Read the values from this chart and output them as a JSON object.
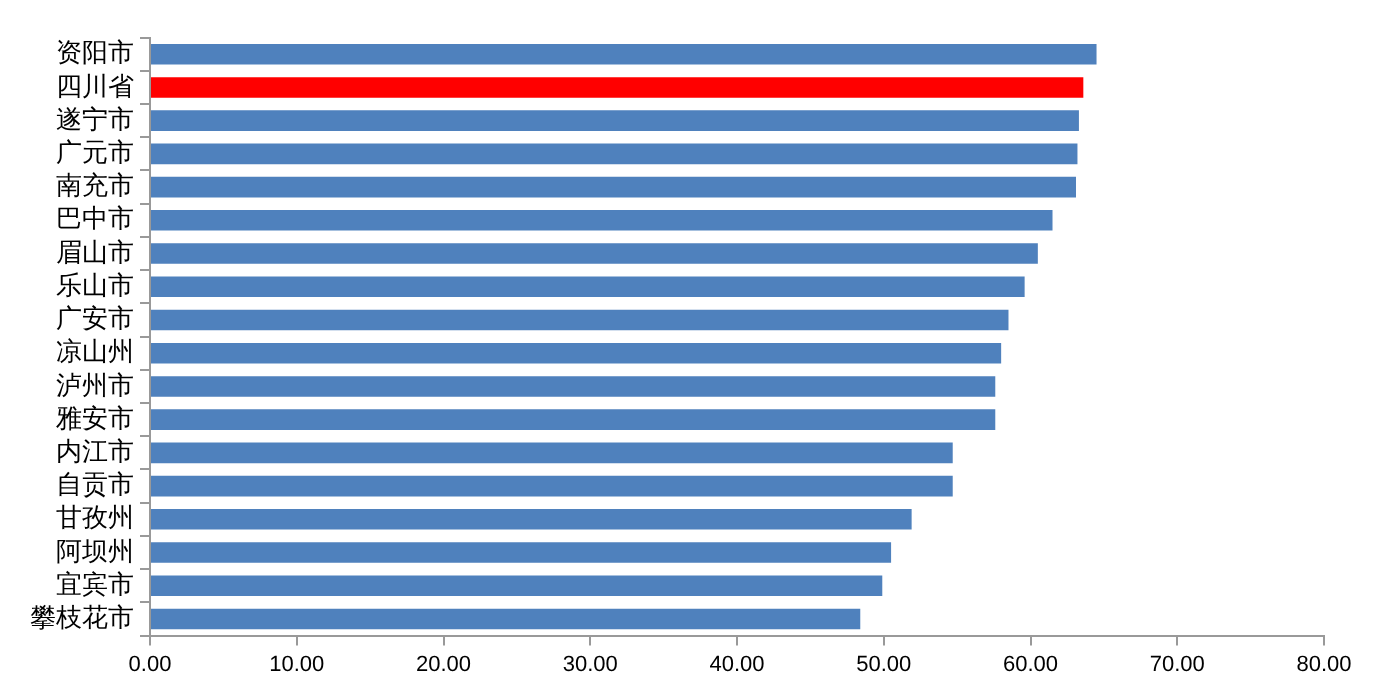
{
  "chart_data": {
    "type": "bar",
    "orientation": "horizontal",
    "categories": [
      "资阳市",
      "四川省",
      "遂宁市",
      "广元市",
      "南充市",
      "巴中市",
      "眉山市",
      "乐山市",
      "广安市",
      "凉山州",
      "泸州市",
      "雅安市",
      "内江市",
      "自贡市",
      "甘孜州",
      "阿坝州",
      "宜宾市",
      "攀枝花市"
    ],
    "values": [
      64.5,
      63.6,
      63.3,
      63.2,
      63.1,
      61.5,
      60.5,
      59.6,
      58.5,
      58.0,
      57.6,
      57.6,
      54.7,
      54.7,
      51.9,
      50.5,
      49.9,
      48.4
    ],
    "colors": [
      "#4f81bd",
      "#ff0000",
      "#4f81bd",
      "#4f81bd",
      "#4f81bd",
      "#4f81bd",
      "#4f81bd",
      "#4f81bd",
      "#4f81bd",
      "#4f81bd",
      "#4f81bd",
      "#4f81bd",
      "#4f81bd",
      "#4f81bd",
      "#4f81bd",
      "#4f81bd",
      "#4f81bd",
      "#4f81bd"
    ],
    "xlim": [
      0,
      80
    ],
    "xticks": [
      {
        "value": 0,
        "label": "0.00"
      },
      {
        "value": 10,
        "label": "10.00"
      },
      {
        "value": 20,
        "label": "20.00"
      },
      {
        "value": 30,
        "label": "30.00"
      },
      {
        "value": 40,
        "label": "40.00"
      },
      {
        "value": 50,
        "label": "50.00"
      },
      {
        "value": 60,
        "label": "60.00"
      },
      {
        "value": 70,
        "label": "70.00"
      },
      {
        "value": 80,
        "label": "80.00"
      }
    ],
    "grid": false,
    "legend": false
  }
}
